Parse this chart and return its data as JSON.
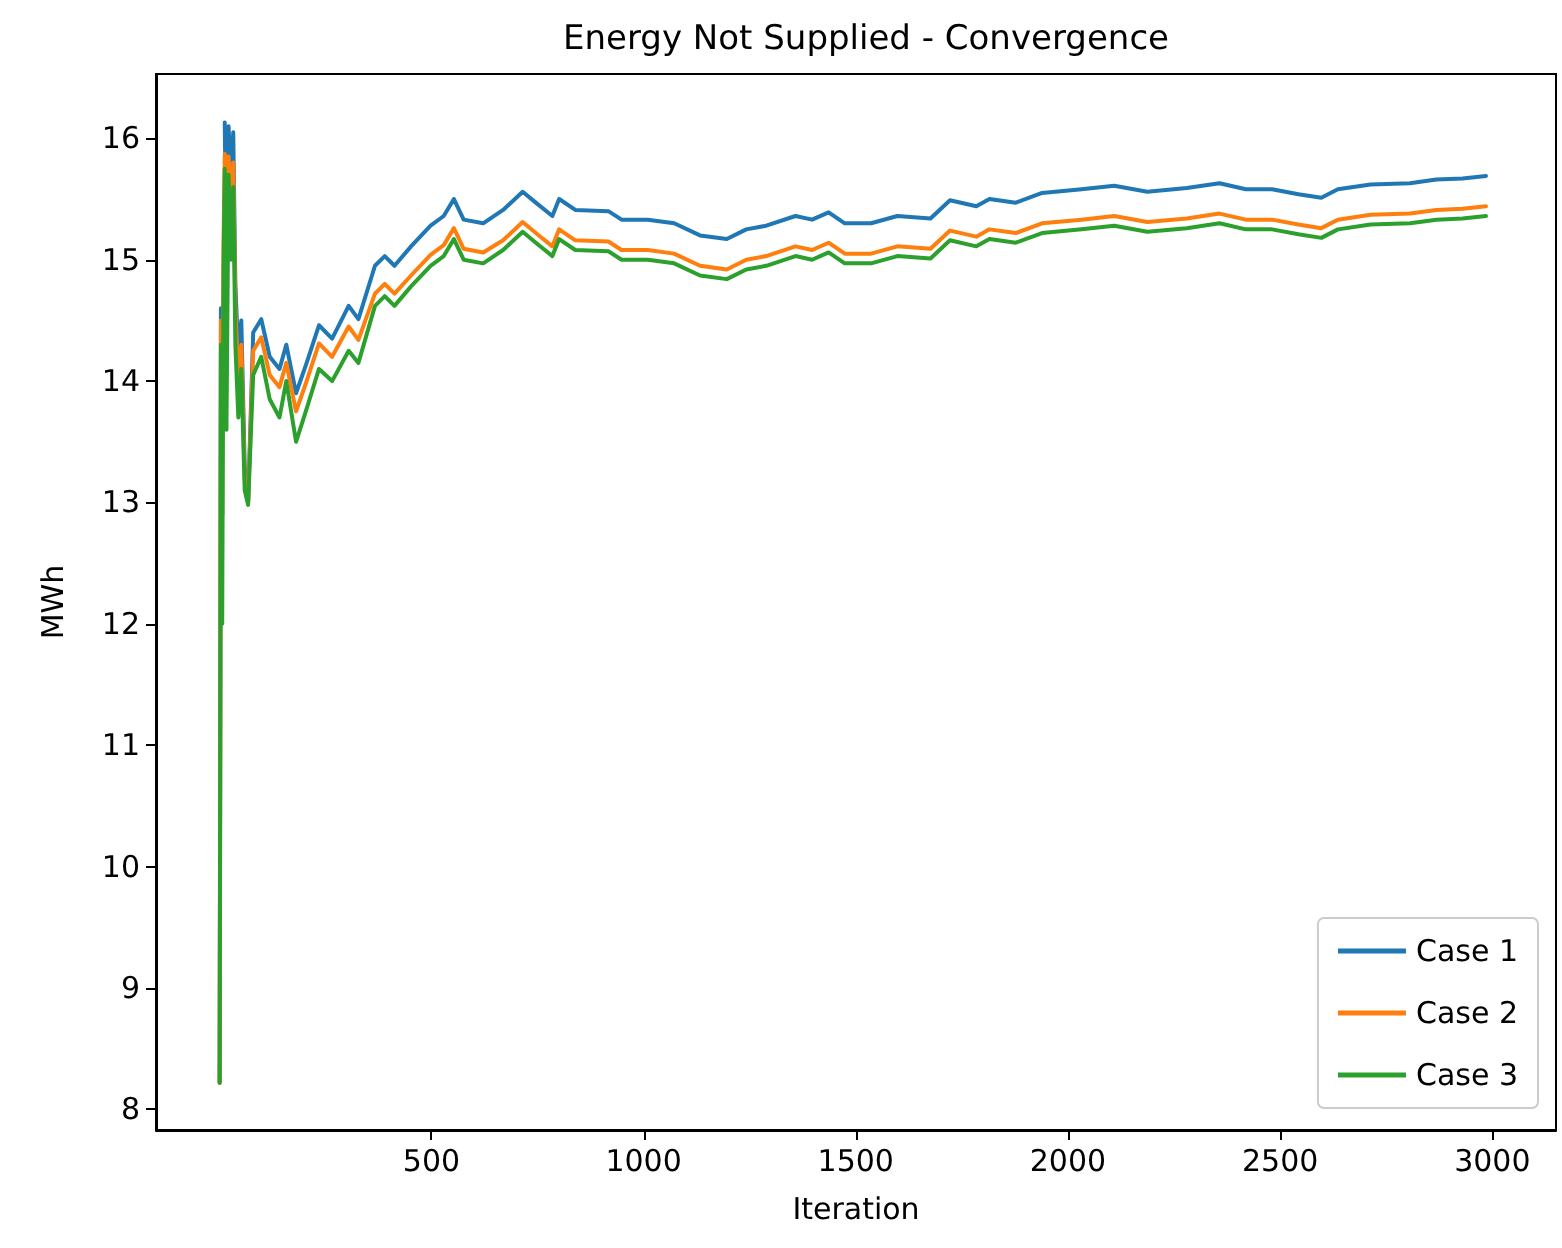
{
  "chart_data": {
    "type": "line",
    "title": "Energy Not Supplied - Convergence",
    "xlabel": "Iteration",
    "ylabel": "MWh",
    "x": [
      1,
      4,
      7,
      10,
      13,
      17,
      22,
      28,
      33,
      38,
      45,
      52,
      60,
      68,
      80,
      99,
      119,
      142,
      158,
      181,
      204,
      235,
      266,
      305,
      328,
      367,
      390,
      413,
      452,
      498,
      529,
      553,
      576,
      622,
      669,
      715,
      746,
      785,
      801,
      839,
      917,
      948,
      1010,
      1072,
      1133,
      1196,
      1242,
      1289,
      1358,
      1397,
      1436,
      1474,
      1536,
      1598,
      1676,
      1722,
      1784,
      1815,
      1877,
      1939,
      2032,
      2109,
      2187,
      2280,
      2357,
      2419,
      2481,
      2543,
      2597,
      2636,
      2713,
      2806,
      2868,
      2930,
      2985
    ],
    "series": [
      {
        "name": "Case 1",
        "color": "#1f77b4",
        "values": [
          8.22,
          14.6,
          12.9,
          null,
          16.13,
          14.9,
          16.1,
          15.6,
          16.05,
          14.8,
          14.2,
          14.5,
          13.3,
          13.0,
          14.4,
          14.51,
          14.2,
          14.1,
          14.3,
          13.9,
          14.13,
          14.46,
          14.35,
          14.62,
          14.51,
          14.95,
          15.03,
          14.95,
          15.11,
          15.28,
          15.36,
          15.5,
          15.33,
          15.3,
          15.41,
          15.56,
          15.47,
          15.36,
          15.5,
          15.41,
          15.4,
          15.33,
          15.33,
          15.3,
          15.2,
          15.17,
          15.25,
          15.28,
          15.36,
          15.33,
          15.39,
          15.3,
          15.3,
          15.36,
          15.34,
          15.49,
          15.44,
          15.5,
          15.47,
          15.55,
          15.58,
          15.61,
          15.56,
          15.59,
          15.63,
          15.58,
          15.58,
          15.54,
          15.51,
          15.58,
          15.62,
          15.63,
          15.66,
          15.67,
          15.69
        ]
      },
      {
        "name": "Case 2",
        "color": "#ff7f0e",
        "values": [
          8.22,
          14.5,
          12.9,
          15.1,
          15.87,
          14.8,
          15.85,
          15.4,
          15.8,
          14.6,
          14.0,
          14.3,
          13.2,
          13.0,
          14.25,
          14.36,
          14.05,
          13.95,
          14.15,
          13.75,
          13.98,
          14.31,
          14.2,
          14.45,
          14.34,
          14.72,
          14.8,
          14.72,
          14.87,
          15.04,
          15.12,
          15.26,
          15.09,
          15.06,
          15.16,
          15.31,
          15.22,
          15.11,
          15.25,
          15.16,
          15.15,
          15.08,
          15.08,
          15.05,
          14.95,
          14.92,
          15.0,
          15.03,
          15.11,
          15.08,
          15.14,
          15.05,
          15.05,
          15.11,
          15.09,
          15.24,
          15.19,
          15.25,
          15.22,
          15.3,
          15.33,
          15.36,
          15.31,
          15.34,
          15.38,
          15.33,
          15.33,
          15.29,
          15.26,
          15.33,
          15.37,
          15.38,
          15.41,
          15.42,
          15.44
        ]
      },
      {
        "name": "Case 3",
        "color": "#2ca02c",
        "values": [
          8.22,
          14.3,
          12.0,
          14.9,
          15.75,
          13.6,
          15.7,
          15.0,
          15.6,
          14.3,
          13.7,
          14.1,
          13.1,
          12.98,
          14.05,
          14.2,
          13.85,
          13.7,
          14.0,
          13.5,
          13.75,
          14.1,
          14.0,
          14.25,
          14.15,
          14.62,
          14.7,
          14.62,
          14.78,
          14.95,
          15.03,
          15.17,
          15.0,
          14.97,
          15.08,
          15.23,
          15.14,
          15.03,
          15.17,
          15.08,
          15.07,
          15.0,
          15.0,
          14.97,
          14.87,
          14.84,
          14.92,
          14.95,
          15.03,
          15.0,
          15.06,
          14.97,
          14.97,
          15.03,
          15.01,
          15.16,
          15.11,
          15.17,
          15.14,
          15.22,
          15.25,
          15.28,
          15.23,
          15.26,
          15.3,
          15.25,
          15.25,
          15.21,
          15.18,
          15.25,
          15.29,
          15.3,
          15.33,
          15.34,
          15.36
        ]
      }
    ],
    "xlim": [
      -149,
      3150
    ],
    "xticks": [
      500,
      1000,
      1500,
      2000,
      2500,
      3000
    ],
    "ylim": [
      7.83,
      16.53
    ],
    "yticks": [
      8,
      9,
      10,
      11,
      12,
      13,
      14,
      15,
      16
    ],
    "legend": "bottom right"
  }
}
